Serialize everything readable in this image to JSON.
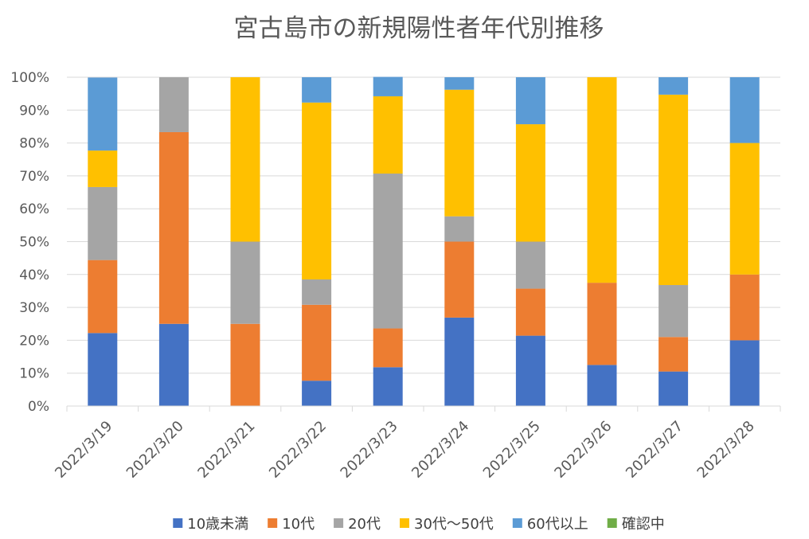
{
  "chart_data": {
    "type": "bar",
    "stacked": true,
    "normalized": true,
    "title": "宮古島市の新規陽性者年代別推移",
    "xlabel": "",
    "ylabel": "",
    "ylim": [
      0,
      100
    ],
    "yticks": [
      "0%",
      "10%",
      "20%",
      "30%",
      "40%",
      "50%",
      "60%",
      "70%",
      "80%",
      "90%",
      "100%"
    ],
    "categories": [
      "2022/3/19",
      "2022/3/20",
      "2022/3/21",
      "2022/3/22",
      "2022/3/23",
      "2022/3/24",
      "2022/3/25",
      "2022/3/26",
      "2022/3/27",
      "2022/3/28"
    ],
    "legend_position": "bottom",
    "series": [
      {
        "name": "10歳未満",
        "color": "#4472C4",
        "values": [
          22.2,
          25.0,
          0,
          7.7,
          11.8,
          26.9,
          21.4,
          12.5,
          10.5,
          20.0
        ]
      },
      {
        "name": "10代",
        "color": "#ED7D31",
        "values": [
          22.2,
          58.3,
          25.0,
          23.1,
          11.8,
          23.1,
          14.3,
          25.0,
          10.5,
          20.0
        ]
      },
      {
        "name": "20代",
        "color": "#A5A5A5",
        "values": [
          22.2,
          16.7,
          25.0,
          7.7,
          47.1,
          7.7,
          14.3,
          0,
          15.8,
          0
        ]
      },
      {
        "name": "30代～50代",
        "color": "#FFC000",
        "values": [
          11.1,
          0,
          50.0,
          53.8,
          23.5,
          38.5,
          35.7,
          62.5,
          57.9,
          40.0
        ]
      },
      {
        "name": "60代以上",
        "color": "#5B9BD5",
        "values": [
          22.2,
          0,
          0,
          7.7,
          5.9,
          3.8,
          14.3,
          0,
          5.3,
          20.0
        ]
      },
      {
        "name": "確認中",
        "color": "#70AD47",
        "values": [
          0,
          0,
          0,
          0,
          0,
          0,
          0,
          0,
          0,
          0
        ]
      }
    ]
  }
}
